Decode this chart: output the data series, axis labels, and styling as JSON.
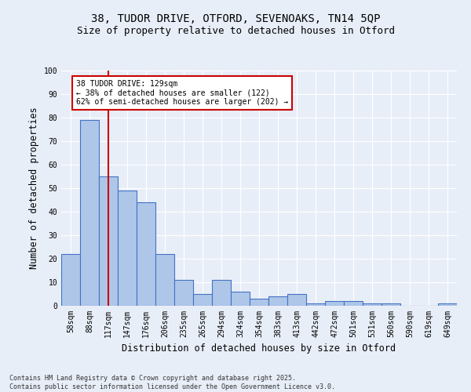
{
  "title_line1": "38, TUDOR DRIVE, OTFORD, SEVENOAKS, TN14 5QP",
  "title_line2": "Size of property relative to detached houses in Otford",
  "xlabel": "Distribution of detached houses by size in Otford",
  "ylabel": "Number of detached properties",
  "categories": [
    "58sqm",
    "88sqm",
    "117sqm",
    "147sqm",
    "176sqm",
    "206sqm",
    "235sqm",
    "265sqm",
    "294sqm",
    "324sqm",
    "354sqm",
    "383sqm",
    "413sqm",
    "442sqm",
    "472sqm",
    "501sqm",
    "531sqm",
    "560sqm",
    "590sqm",
    "619sqm",
    "649sqm"
  ],
  "values": [
    22,
    79,
    55,
    49,
    44,
    22,
    11,
    5,
    11,
    6,
    3,
    4,
    5,
    1,
    2,
    2,
    1,
    1,
    0,
    0,
    1
  ],
  "bar_color": "#aec6e8",
  "bar_edge_color": "#4472c4",
  "red_line_x": 2.0,
  "annotation_text": "38 TUDOR DRIVE: 129sqm\n← 38% of detached houses are smaller (122)\n62% of semi-detached houses are larger (202) →",
  "annotation_box_color": "#ffffff",
  "annotation_box_edge_color": "#cc0000",
  "red_line_color": "#cc0000",
  "ylim": [
    0,
    100
  ],
  "yticks": [
    0,
    10,
    20,
    30,
    40,
    50,
    60,
    70,
    80,
    90,
    100
  ],
  "footnote": "Contains HM Land Registry data © Crown copyright and database right 2025.\nContains public sector information licensed under the Open Government Licence v3.0.",
  "bg_color": "#e8eef8",
  "grid_color": "#ffffff",
  "title_fontsize": 10,
  "subtitle_fontsize": 9,
  "tick_fontsize": 7,
  "label_fontsize": 8.5,
  "annot_fontsize": 7,
  "footnote_fontsize": 6
}
